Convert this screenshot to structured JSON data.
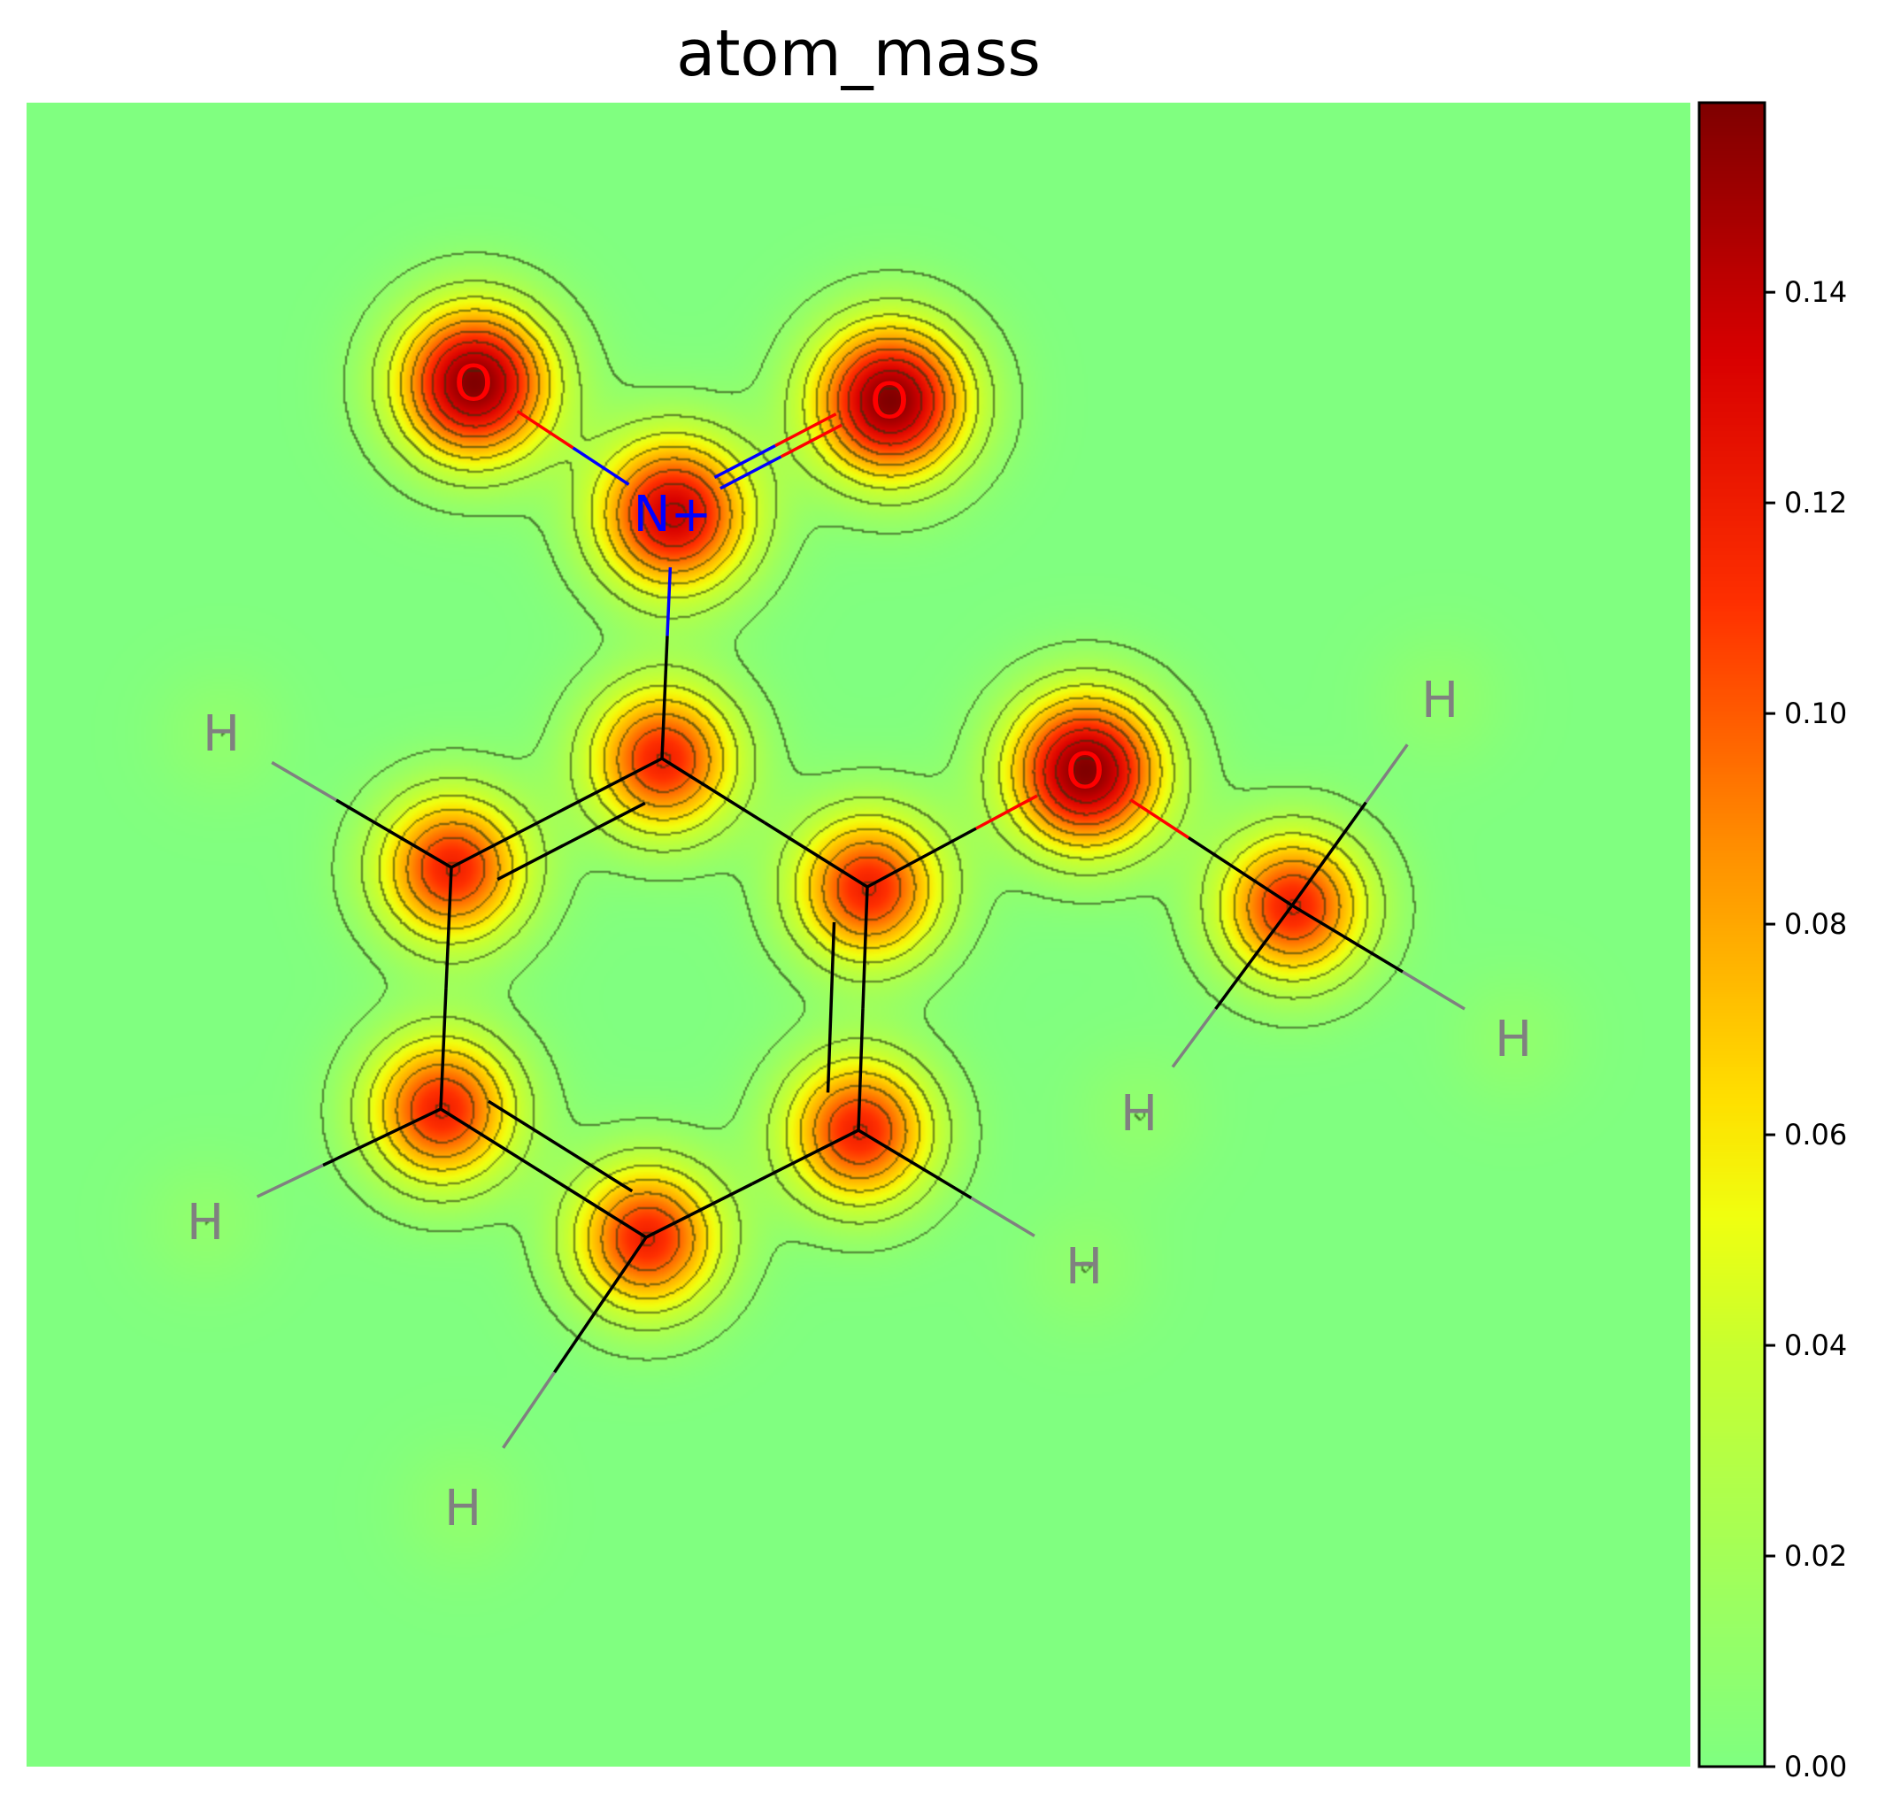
{
  "chart_data": {
    "type": "heatmap",
    "title": "atom_mass",
    "colormap": "jet",
    "colorbar": {
      "range": [
        0,
        0.158
      ],
      "ticks": [
        "0.00",
        "0.02",
        "0.04",
        "0.06",
        "0.08",
        "0.10",
        "0.12",
        "0.14"
      ],
      "tick_values": [
        0,
        0.02,
        0.04,
        0.06,
        0.08,
        0.1,
        0.12,
        0.14
      ]
    },
    "contour_levels": [
      0.009,
      0.027,
      0.045,
      0.063,
      0.081,
      0.099,
      0.117,
      0.135,
      0.153
    ],
    "atoms": [
      {
        "symbol": "O",
        "label": "O",
        "peak": 0.158,
        "color": "#ff0000",
        "shown": true
      },
      {
        "symbol": "O",
        "label": "O",
        "peak": 0.158,
        "color": "#ff0000",
        "shown": true
      },
      {
        "symbol": "N",
        "label": "N+",
        "peak": 0.138,
        "color": "#0000ff",
        "shown": true
      },
      {
        "symbol": "C",
        "label": "C",
        "peak": 0.118,
        "color": "#000000",
        "shown": false
      },
      {
        "symbol": "C",
        "label": "C",
        "peak": 0.118,
        "color": "#000000",
        "shown": false
      },
      {
        "symbol": "C",
        "label": "C",
        "peak": 0.118,
        "color": "#000000",
        "shown": false
      },
      {
        "symbol": "C",
        "label": "C",
        "peak": 0.118,
        "color": "#000000",
        "shown": false
      },
      {
        "symbol": "C",
        "label": "C",
        "peak": 0.118,
        "color": "#000000",
        "shown": false
      },
      {
        "symbol": "C",
        "label": "C",
        "peak": 0.118,
        "color": "#000000",
        "shown": false
      },
      {
        "symbol": "O",
        "label": "O",
        "peak": 0.158,
        "color": "#ff0000",
        "shown": true
      },
      {
        "symbol": "C",
        "label": "C",
        "peak": 0.118,
        "color": "#000000",
        "shown": false
      },
      {
        "symbol": "H",
        "label": "H",
        "peak": 0.009,
        "color": "#808080",
        "shown": true
      },
      {
        "symbol": "H",
        "label": "H",
        "peak": 0.009,
        "color": "#808080",
        "shown": true
      },
      {
        "symbol": "H",
        "label": "H",
        "peak": 0.009,
        "color": "#808080",
        "shown": true
      },
      {
        "symbol": "H",
        "label": "H",
        "peak": 0.009,
        "color": "#808080",
        "shown": true
      },
      {
        "symbol": "H",
        "label": "H",
        "peak": 0.009,
        "color": "#808080",
        "shown": true
      },
      {
        "symbol": "H",
        "label": "H",
        "peak": 0.009,
        "color": "#808080",
        "shown": true
      },
      {
        "symbol": "H",
        "label": "H",
        "peak": 0.009,
        "color": "#808080",
        "shown": true
      }
    ],
    "bonds": [
      {
        "a": 0,
        "b": 2,
        "order": 1
      },
      {
        "a": 1,
        "b": 2,
        "order": 2
      },
      {
        "a": 2,
        "b": 3,
        "order": 1
      },
      {
        "a": 3,
        "b": 4,
        "order": 2
      },
      {
        "a": 4,
        "b": 5,
        "order": 1
      },
      {
        "a": 5,
        "b": 6,
        "order": 2
      },
      {
        "a": 6,
        "b": 7,
        "order": 1
      },
      {
        "a": 7,
        "b": 8,
        "order": 2
      },
      {
        "a": 8,
        "b": 3,
        "order": 1
      },
      {
        "a": 8,
        "b": 9,
        "order": 1
      },
      {
        "a": 9,
        "b": 10,
        "order": 1
      },
      {
        "a": 4,
        "b": 11,
        "order": 1
      },
      {
        "a": 5,
        "b": 12,
        "order": 1
      },
      {
        "a": 6,
        "b": 13,
        "order": 1
      },
      {
        "a": 7,
        "b": 14,
        "order": 1
      },
      {
        "a": 10,
        "b": 15,
        "order": 1
      },
      {
        "a": 10,
        "b": 16,
        "order": 1
      },
      {
        "a": 10,
        "b": 17,
        "order": 1
      }
    ]
  }
}
